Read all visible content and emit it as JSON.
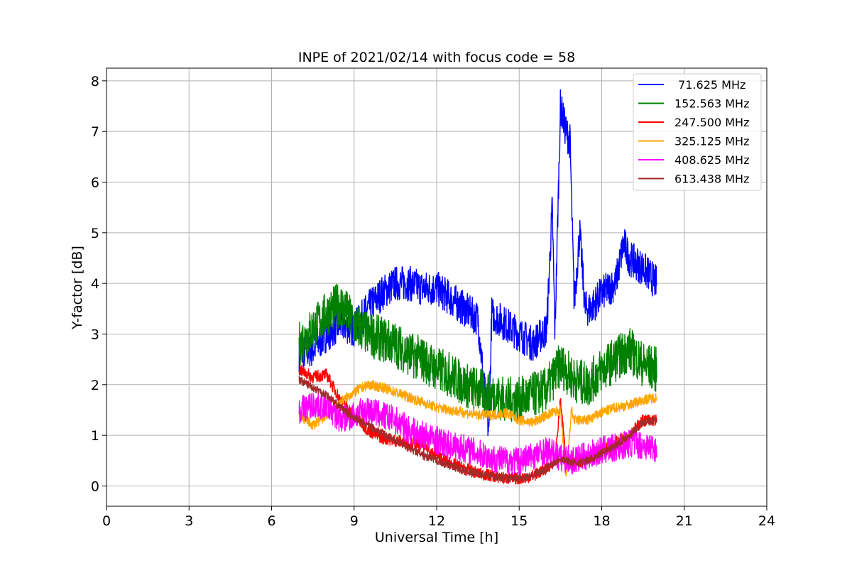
{
  "chart_data": {
    "type": "line",
    "title": "INPE of 2021/02/14 with focus code = 58",
    "xlabel": "Universal Time [h]",
    "ylabel": "Y-factor [dB]",
    "xlim": [
      0,
      24
    ],
    "ylim": [
      -0.4,
      8.25
    ],
    "xticks": [
      0,
      3,
      6,
      9,
      12,
      15,
      18,
      21,
      24
    ],
    "yticks": [
      0,
      1,
      2,
      3,
      4,
      5,
      6,
      7,
      8
    ],
    "grid": true,
    "legend_position": "top-right",
    "series": [
      {
        "name": " 71.625 MHz",
        "color": "#0000ff",
        "noise": 0.35,
        "x": [
          7.0,
          7.5,
          8.0,
          8.5,
          9.0,
          9.5,
          10.0,
          10.5,
          11.0,
          11.5,
          12.0,
          12.5,
          13.0,
          13.5,
          13.9,
          14.0,
          14.5,
          15.0,
          15.5,
          16.0,
          16.2,
          16.3,
          16.5,
          16.7,
          16.85,
          17.0,
          17.2,
          17.4,
          17.6,
          18.0,
          18.5,
          18.8,
          19.0,
          19.5,
          20.0
        ],
        "y": [
          2.6,
          2.7,
          3.0,
          3.2,
          3.1,
          3.5,
          3.8,
          4.0,
          4.0,
          3.9,
          3.9,
          3.7,
          3.5,
          3.3,
          1.0,
          3.4,
          3.2,
          3.0,
          2.8,
          3.1,
          5.5,
          3.0,
          7.5,
          7.0,
          6.8,
          3.6,
          5.0,
          3.5,
          3.5,
          3.8,
          4.0,
          4.8,
          4.5,
          4.3,
          4.0
        ]
      },
      {
        "name": "152.563 MHz",
        "color": "#008000",
        "noise": 0.45,
        "x": [
          7.0,
          7.5,
          8.0,
          8.5,
          9.0,
          9.5,
          10.0,
          10.5,
          11.0,
          11.5,
          12.0,
          12.5,
          13.0,
          13.5,
          14.0,
          14.5,
          15.0,
          15.5,
          16.0,
          16.5,
          17.0,
          17.5,
          18.0,
          18.5,
          19.0,
          19.5,
          20.0
        ],
        "y": [
          2.8,
          3.1,
          3.4,
          3.6,
          3.2,
          3.0,
          2.9,
          2.8,
          2.6,
          2.5,
          2.3,
          2.2,
          2.0,
          1.9,
          1.8,
          1.7,
          1.7,
          1.8,
          1.9,
          2.4,
          2.1,
          2.0,
          2.3,
          2.5,
          2.7,
          2.4,
          2.3
        ]
      },
      {
        "name": "247.500 MHz",
        "color": "#ff0000",
        "noise": 0.12,
        "x": [
          7.0,
          7.5,
          8.0,
          8.5,
          9.0,
          9.5,
          10.0,
          10.5,
          11.0,
          11.5,
          12.0,
          12.5,
          13.0,
          13.5,
          14.0,
          14.5,
          15.0,
          15.5,
          16.0,
          16.3,
          16.5,
          16.7,
          17.0,
          17.5,
          18.0,
          18.5,
          19.0,
          19.5,
          20.0
        ],
        "y": [
          2.3,
          2.15,
          2.2,
          1.7,
          1.4,
          1.1,
          0.95,
          0.9,
          0.85,
          0.8,
          0.6,
          0.45,
          0.35,
          0.25,
          0.2,
          0.15,
          0.15,
          0.2,
          0.35,
          0.5,
          1.7,
          0.5,
          0.45,
          0.55,
          0.7,
          0.85,
          1.0,
          1.3,
          1.3
        ]
      },
      {
        "name": "325.125 MHz",
        "color": "#ffa500",
        "noise": 0.1,
        "x": [
          7.0,
          7.5,
          8.0,
          8.5,
          9.0,
          9.5,
          10.0,
          10.5,
          11.0,
          11.5,
          12.0,
          12.5,
          13.0,
          13.5,
          14.0,
          14.5,
          15.0,
          15.5,
          16.0,
          16.5,
          16.7,
          16.9,
          17.0,
          17.5,
          18.0,
          18.5,
          19.0,
          19.5,
          20.0
        ],
        "y": [
          1.4,
          1.2,
          1.4,
          1.65,
          1.85,
          2.0,
          1.95,
          1.85,
          1.75,
          1.65,
          1.55,
          1.5,
          1.45,
          1.4,
          1.4,
          1.45,
          1.3,
          1.25,
          1.4,
          1.5,
          0.1,
          1.5,
          1.3,
          1.3,
          1.45,
          1.55,
          1.6,
          1.7,
          1.75
        ]
      },
      {
        "name": "408.625 MHz",
        "color": "#ff00ff",
        "noise": 0.28,
        "x": [
          7.0,
          7.5,
          8.0,
          8.5,
          9.0,
          9.5,
          10.0,
          10.5,
          11.0,
          11.5,
          12.0,
          12.5,
          13.0,
          13.5,
          14.0,
          14.5,
          15.0,
          15.5,
          16.0,
          16.5,
          17.0,
          17.5,
          18.0,
          18.5,
          19.0,
          19.5,
          20.0
        ],
        "y": [
          1.5,
          1.6,
          1.6,
          1.3,
          1.4,
          1.5,
          1.4,
          1.3,
          1.1,
          1.0,
          0.9,
          0.8,
          0.75,
          0.65,
          0.55,
          0.5,
          0.5,
          0.6,
          0.7,
          0.55,
          0.5,
          0.6,
          0.7,
          0.75,
          0.85,
          0.8,
          0.75
        ]
      },
      {
        "name": "613.438 MHz",
        "color": "#a52a2a",
        "noise": 0.08,
        "x": [
          7.0,
          7.5,
          8.0,
          8.5,
          9.0,
          9.5,
          10.0,
          10.5,
          11.0,
          11.5,
          12.0,
          12.5,
          13.0,
          13.5,
          14.0,
          14.5,
          15.0,
          15.5,
          16.0,
          16.5,
          17.0,
          17.5,
          18.0,
          18.5,
          19.0,
          19.5,
          20.0
        ],
        "y": [
          2.1,
          1.95,
          1.8,
          1.55,
          1.35,
          1.2,
          1.05,
          0.9,
          0.75,
          0.6,
          0.5,
          0.4,
          0.3,
          0.25,
          0.2,
          0.15,
          0.15,
          0.2,
          0.35,
          0.55,
          0.45,
          0.5,
          0.65,
          0.8,
          1.0,
          1.25,
          1.3
        ]
      }
    ]
  }
}
